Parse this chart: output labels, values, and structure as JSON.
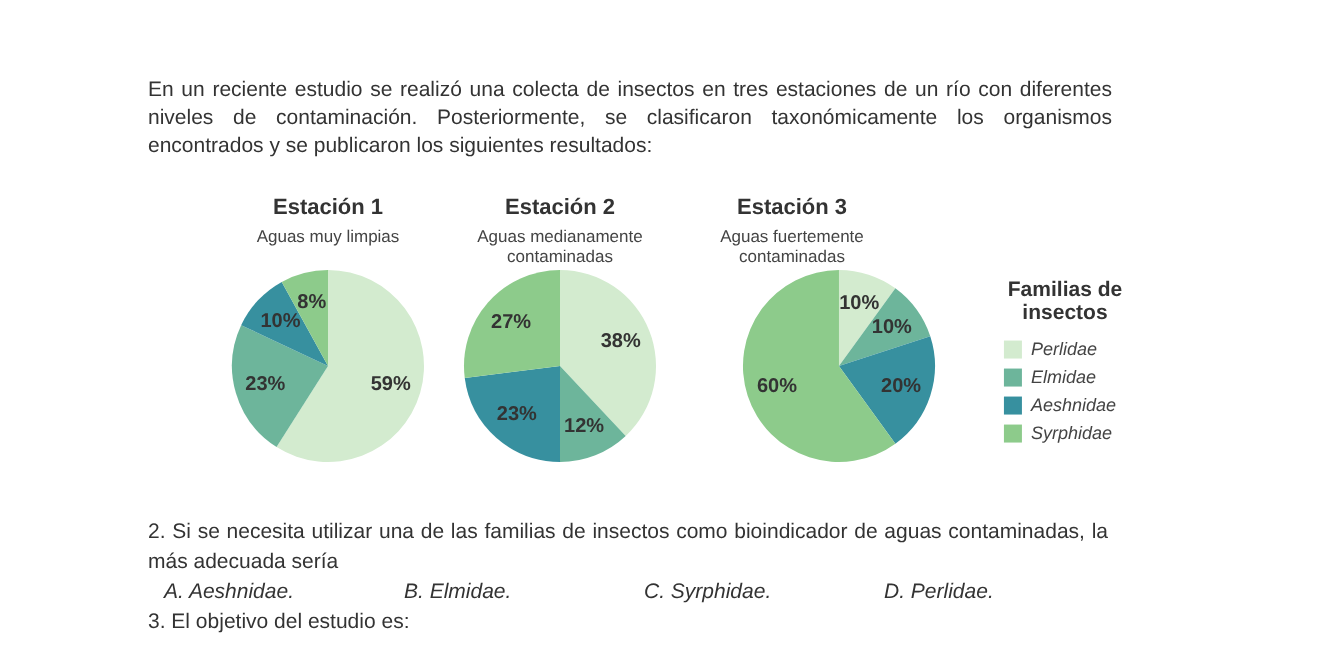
{
  "chart_data": [
    {
      "type": "pie",
      "title": "Estación 1",
      "subtitle": "Aguas muy limpias",
      "categories": [
        null,
        null,
        null,
        null
      ],
      "values": [
        59,
        23,
        10,
        8
      ],
      "value_labels": [
        "59%",
        "23%",
        "10%",
        "8%"
      ],
      "colors": [
        "#d3ebcf",
        "#6db59b",
        "#37909f",
        "#8dcb8b"
      ],
      "legend": false,
      "annotations": [
        "En un reciente estudio se realizó una colecta de insectos en tres estaciones de un río con diferentes niveles de contaminación. Posteriormente, se clasificaron taxonómicamente los organismos encontrados y se publicaron los siguientes resultados:"
      ]
    },
    {
      "type": "pie",
      "title": "Estación 2",
      "subtitle": "Aguas medianamente contaminadas",
      "categories": [
        null,
        null,
        null,
        null
      ],
      "values": [
        38,
        12,
        23,
        27
      ],
      "value_labels": [
        "38%",
        "12%",
        "23%",
        "27%"
      ],
      "colors": [
        "#d3ebcf",
        "#6db59b",
        "#37909f",
        "#8dcb8b"
      ],
      "legend": false
    },
    {
      "type": "pie",
      "title": "Estación 3",
      "subtitle": "Aguas fuertemente contaminadas",
      "categories": [
        "Perlidae",
        "Elmidae",
        "Aeshnidae",
        "Syrphidae"
      ],
      "values": [
        10,
        10,
        20,
        60
      ],
      "value_labels": [
        "10%",
        "10%",
        "20%",
        "60%"
      ],
      "colors": [
        "#d3ebcf",
        "#6db59b",
        "#37909f",
        "#8dcb8b"
      ],
      "legend": "right",
      "legend_title": "Familias de insectos",
      "annotations": [
        "2. Si se necesita utilizar una de las familias de insectos como bioindicador de aguas contaminadas, la más adecuada sería",
        "A. Aeshnidae.",
        "B. Elmidae.",
        "C. Syrphidae.",
        "D. Perlidae.",
        "3. El objetivo del estudio es:"
      ]
    }
  ]
}
